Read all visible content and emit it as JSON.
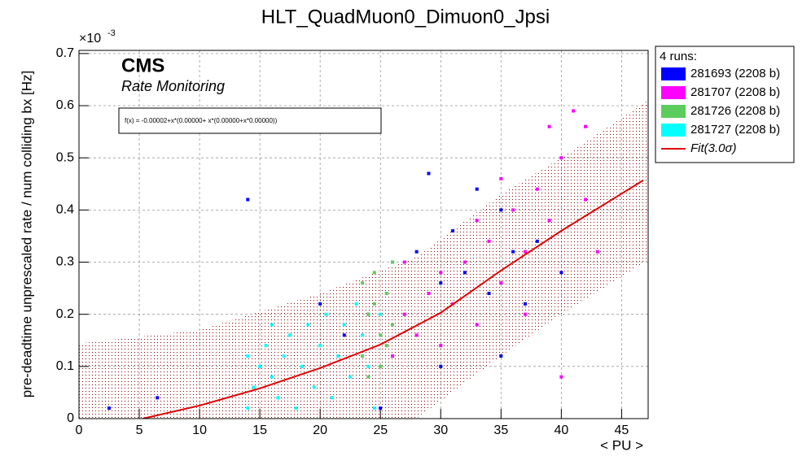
{
  "chart_data": {
    "type": "scatter",
    "title": "HLT_QuadMuon0_Dimuon0_Jpsi",
    "x_label": "< PU >",
    "y_label": "pre-deadtime unprescaled rate / num colliding bx [Hz]",
    "y_multiplier": {
      "base": "×10",
      "exponent": "-3"
    },
    "annotations": {
      "experiment": "CMS",
      "subtitle": "Rate Monitoring",
      "fit_formula": "f(x) = -0.00002+x*(0.00000+ x*(0.00000+x*0.00000))"
    },
    "legend_title": "4 runs:",
    "legend_position": "outside-right",
    "grid": true,
    "xlim": [
      0,
      47.2
    ],
    "ylim": [
      0,
      0.706
    ],
    "xticks": [
      0,
      5,
      10,
      15,
      20,
      25,
      30,
      35,
      40,
      45
    ],
    "yticks": [
      0,
      0.1,
      0.2,
      0.3,
      0.4,
      0.5,
      0.6,
      0.7
    ],
    "series": [
      {
        "name": "281693 (2208 b)",
        "color": "#0000ff",
        "x": [
          2.5,
          6.5,
          14,
          20,
          22,
          24,
          26,
          28,
          29,
          30,
          31,
          32,
          33,
          34,
          35,
          36,
          37,
          38,
          40,
          25,
          30,
          35
        ],
        "values": [
          0.02,
          0.04,
          0.42,
          0.22,
          0.16,
          0.2,
          0.3,
          0.32,
          0.47,
          0.26,
          0.36,
          0.28,
          0.44,
          0.24,
          0.4,
          0.32,
          0.22,
          0.34,
          0.28,
          0.02,
          0.1,
          0.12
        ]
      },
      {
        "name": "281707 (2208 b)",
        "color": "#ff00ff",
        "x": [
          26,
          27,
          28,
          29,
          30,
          31,
          32,
          33,
          34,
          35,
          36,
          37,
          38,
          39,
          40,
          41,
          42,
          43,
          27,
          30,
          33,
          35,
          37,
          39,
          42,
          40
        ],
        "values": [
          0.12,
          0.2,
          0.16,
          0.24,
          0.28,
          0.22,
          0.3,
          0.18,
          0.34,
          0.26,
          0.4,
          0.32,
          0.44,
          0.38,
          0.5,
          0.59,
          0.42,
          0.32,
          0.3,
          0.14,
          0.38,
          0.46,
          0.2,
          0.56,
          0.56,
          0.08
        ]
      },
      {
        "name": "281726 (2208 b)",
        "color": "#5ccd5c",
        "x": [
          23.5,
          24,
          24.5,
          25,
          25.5,
          26,
          24,
          25,
          25.5,
          26,
          24.5,
          23.5
        ],
        "values": [
          0.12,
          0.2,
          0.28,
          0.16,
          0.24,
          0.3,
          0.08,
          0.1,
          0.14,
          0.18,
          0.22,
          0.26
        ]
      },
      {
        "name": "281727 (2208 b)",
        "color": "#00ffff",
        "x": [
          14,
          14.5,
          15,
          15.5,
          16,
          16.5,
          17,
          17.5,
          18,
          18.5,
          19,
          19.5,
          20,
          20.5,
          21,
          21.5,
          22,
          22.5,
          23,
          23.5,
          24,
          24.5,
          25,
          14,
          16
        ],
        "values": [
          0.02,
          0.06,
          0.1,
          0.14,
          0.08,
          0.04,
          0.12,
          0.16,
          0.02,
          0.1,
          0.18,
          0.06,
          0.14,
          0.2,
          0.04,
          0.12,
          0.18,
          0.08,
          0.22,
          0.16,
          0.1,
          0.02,
          0.2,
          0.12,
          0.18
        ]
      }
    ],
    "fit": {
      "name": "Fit(3.0σ)",
      "color": "#e00000",
      "x": [
        5.3,
        10,
        15,
        20,
        25,
        30,
        35,
        40,
        46.8
      ],
      "values": [
        0,
        0.025,
        0.058,
        0.097,
        0.142,
        0.203,
        0.284,
        0.36,
        0.457
      ]
    },
    "band": {
      "color": "#8b0000",
      "x": [
        0,
        10,
        20,
        28,
        35,
        40,
        47.2
      ],
      "upper": [
        0.144,
        0.17,
        0.24,
        0.31,
        0.43,
        0.5,
        0.61
      ],
      "lower": [
        -0.12,
        -0.1,
        -0.05,
        0,
        0.12,
        0.2,
        0.304
      ]
    }
  }
}
